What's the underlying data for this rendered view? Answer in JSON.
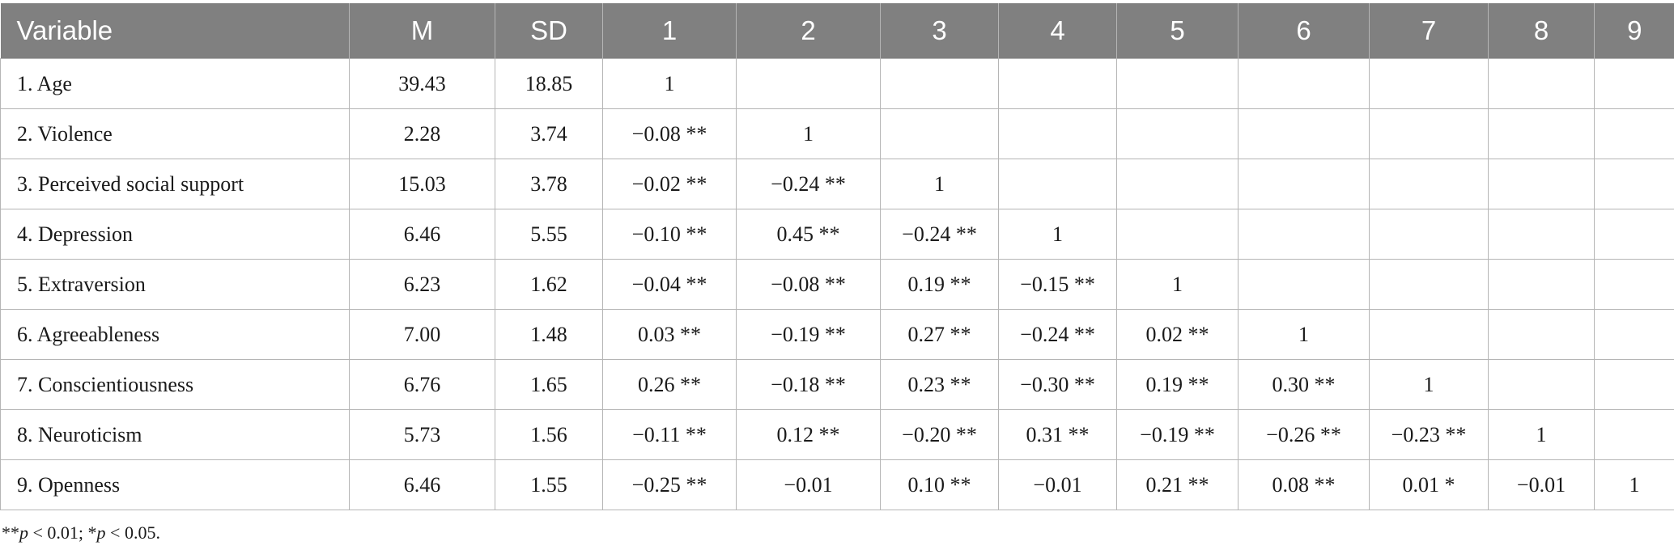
{
  "table": {
    "headers": [
      "Variable",
      "M",
      "SD",
      "1",
      "2",
      "3",
      "4",
      "5",
      "6",
      "7",
      "8",
      "9"
    ],
    "rows": [
      [
        "1.  Age",
        "39.43",
        "18.85",
        "1",
        "",
        "",
        "",
        "",
        "",
        "",
        "",
        ""
      ],
      [
        "2.  Violence",
        "2.28",
        "3.74",
        "−0.08 **",
        "1",
        "",
        "",
        "",
        "",
        "",
        "",
        ""
      ],
      [
        "3.  Perceived social support",
        "15.03",
        "3.78",
        "−0.02 **",
        "−0.24 **",
        "1",
        "",
        "",
        "",
        "",
        "",
        ""
      ],
      [
        "4.  Depression",
        "6.46",
        "5.55",
        "−0.10 **",
        "0.45 **",
        "−0.24 **",
        "1",
        "",
        "",
        "",
        "",
        ""
      ],
      [
        "5.  Extraversion",
        "6.23",
        "1.62",
        "−0.04 **",
        "−0.08 **",
        "0.19 **",
        "−0.15 **",
        "1",
        "",
        "",
        "",
        ""
      ],
      [
        "6.  Agreeableness",
        "7.00",
        "1.48",
        "0.03 **",
        "−0.19 **",
        "0.27 **",
        "−0.24 **",
        "0.02 **",
        "1",
        "",
        "",
        ""
      ],
      [
        "7.  Conscientiousness",
        "6.76",
        "1.65",
        "0.26 **",
        "−0.18 **",
        "0.23 **",
        "−0.30 **",
        "0.19 **",
        "0.30 **",
        "1",
        "",
        ""
      ],
      [
        "8.  Neuroticism",
        "5.73",
        "1.56",
        "−0.11 **",
        "0.12 **",
        "−0.20 **",
        "0.31 **",
        "−0.19 **",
        "−0.26 **",
        "−0.23 **",
        "1",
        ""
      ],
      [
        "9.  Openness",
        "6.46",
        "1.55",
        "−0.25 **",
        "−0.01",
        "0.10 **",
        "−0.01",
        "0.21 **",
        "0.08 **",
        "0.01 *",
        "−0.01",
        "1"
      ]
    ]
  },
  "footnote": {
    "part1_mark": "**",
    "part1_p": "p",
    "part1_rest": " < 0.01; *",
    "part2_p": "p",
    "part2_rest": " < 0.05."
  },
  "colors": {
    "header_bg": "#808080",
    "header_text": "#ffffff",
    "grid_line": "#b5b5b5"
  }
}
